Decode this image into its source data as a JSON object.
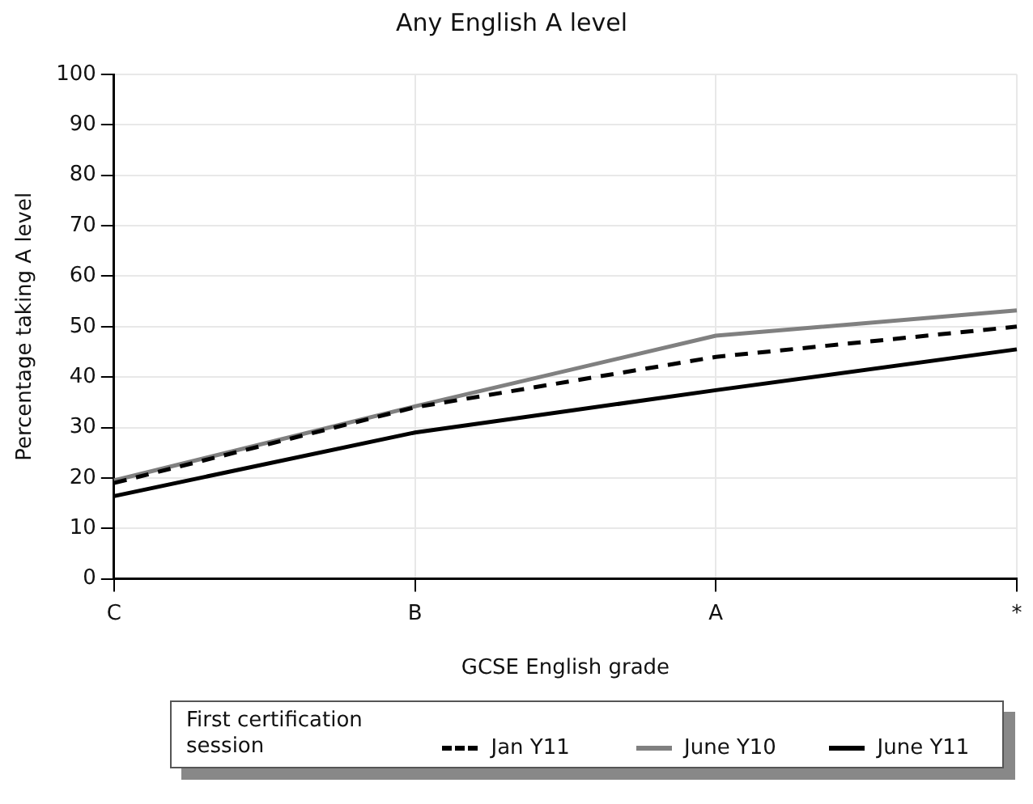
{
  "chart_data": {
    "type": "line",
    "title": "Any English A level",
    "xlabel": "GCSE English grade",
    "ylabel": "Percentage taking A level",
    "legend_title": "First certification session",
    "categories": [
      "C",
      "B",
      "A",
      "*"
    ],
    "series": [
      {
        "name": "Jan Y11",
        "color": "#000000",
        "line_style": "dashed",
        "values": [
          19,
          34,
          44,
          50
        ]
      },
      {
        "name": "June Y10",
        "color": "#808080",
        "line_style": "solid",
        "values": [
          19.5,
          34.2,
          48.2,
          53.2
        ]
      },
      {
        "name": "June Y11",
        "color": "#000000",
        "line_style": "solid",
        "values": [
          16.4,
          29,
          37.4,
          45.5
        ]
      }
    ],
    "ylim": [
      0,
      100
    ],
    "yticks": [
      0,
      10,
      20,
      30,
      40,
      50,
      60,
      70,
      80,
      90,
      100
    ],
    "grid": true,
    "legend": "bottom",
    "marker": "none"
  }
}
